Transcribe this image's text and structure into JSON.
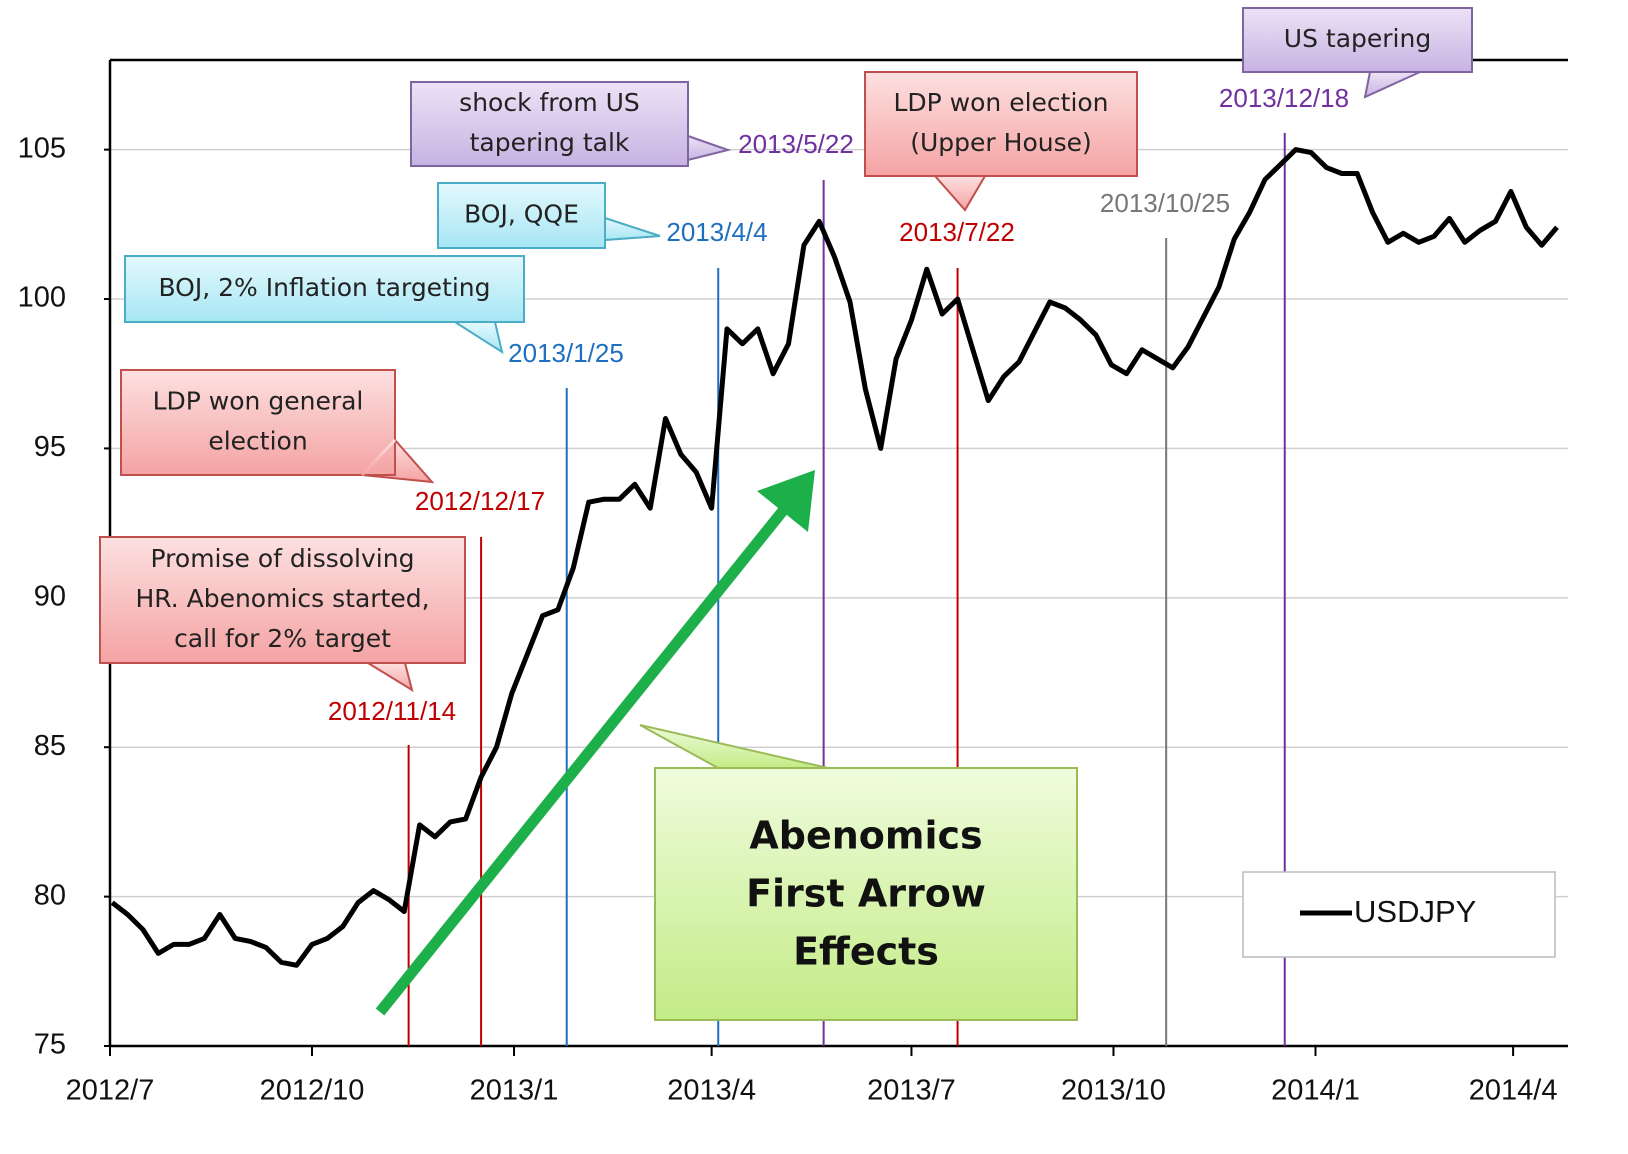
{
  "chart_data": {
    "type": "line",
    "x": [
      "2012/7/2",
      "2012/7/9",
      "2012/7/16",
      "2012/7/23",
      "2012/7/30",
      "2012/8/6",
      "2012/8/13",
      "2012/8/20",
      "2012/8/27",
      "2012/9/3",
      "2012/9/10",
      "2012/9/17",
      "2012/9/24",
      "2012/10/1",
      "2012/10/8",
      "2012/10/15",
      "2012/10/22",
      "2012/10/29",
      "2012/11/5",
      "2012/11/12",
      "2012/11/19",
      "2012/11/26",
      "2012/12/3",
      "2012/12/10",
      "2012/12/17",
      "2012/12/24",
      "2012/12/31",
      "2013/1/7",
      "2013/1/14",
      "2013/1/21",
      "2013/1/28",
      "2013/2/4",
      "2013/2/11",
      "2013/2/18",
      "2013/2/25",
      "2013/3/4",
      "2013/3/11",
      "2013/3/18",
      "2013/3/25",
      "2013/4/1",
      "2013/4/8",
      "2013/4/15",
      "2013/4/22",
      "2013/4/29",
      "2013/5/6",
      "2013/5/13",
      "2013/5/20",
      "2013/5/27",
      "2013/6/3",
      "2013/6/10",
      "2013/6/17",
      "2013/6/24",
      "2013/7/1",
      "2013/7/8",
      "2013/7/15",
      "2013/7/22",
      "2013/7/29",
      "2013/8/5",
      "2013/8/12",
      "2013/8/19",
      "2013/8/26",
      "2013/9/2",
      "2013/9/9",
      "2013/9/16",
      "2013/9/23",
      "2013/9/30",
      "2013/10/7",
      "2013/10/14",
      "2013/10/21",
      "2013/10/28",
      "2013/11/4",
      "2013/11/11",
      "2013/11/18",
      "2013/11/25",
      "2013/12/2",
      "2013/12/9",
      "2013/12/16",
      "2013/12/23",
      "2013/12/30",
      "2014/1/6",
      "2014/1/13",
      "2014/1/20",
      "2014/1/27",
      "2014/2/3",
      "2014/2/10",
      "2014/2/17",
      "2014/2/24",
      "2014/3/3",
      "2014/3/10",
      "2014/3/17",
      "2014/3/24",
      "2014/3/31",
      "2014/4/7",
      "2014/4/14",
      "2014/4/21"
    ],
    "series": [
      {
        "name": "USDJPY",
        "color": "#000000",
        "values": [
          79.8,
          79.4,
          78.9,
          78.1,
          78.4,
          78.4,
          78.6,
          79.4,
          78.6,
          78.5,
          78.3,
          77.8,
          77.7,
          78.4,
          78.6,
          79.0,
          79.8,
          80.2,
          79.9,
          79.5,
          82.4,
          82.0,
          82.5,
          82.6,
          84.0,
          85.0,
          86.8,
          88.1,
          89.4,
          89.6,
          91.0,
          93.2,
          93.3,
          93.3,
          93.8,
          93.0,
          96.0,
          94.8,
          94.2,
          93.0,
          99.0,
          98.5,
          99.0,
          97.5,
          98.5,
          101.8,
          102.6,
          101.4,
          99.9,
          97.0,
          95.0,
          98.0,
          99.3,
          101.0,
          99.5,
          100.0,
          98.3,
          96.6,
          97.4,
          97.9,
          98.9,
          99.9,
          99.7,
          99.3,
          98.8,
          97.8,
          97.5,
          98.3,
          98.0,
          97.7,
          98.4,
          99.4,
          100.4,
          102.0,
          102.9,
          104.0,
          104.5,
          105.0,
          104.9,
          104.4,
          104.2,
          104.2,
          102.9,
          101.9,
          102.2,
          101.9,
          102.1,
          102.7,
          101.9,
          102.3,
          102.6,
          103.6,
          102.4,
          101.8,
          102.4
        ]
      }
    ],
    "xlim": [
      "2012/7/1",
      "2014/4/26"
    ],
    "ylim": [
      75,
      108
    ],
    "xticks": [
      "2012/7",
      "2012/10",
      "2013/1",
      "2013/4",
      "2013/7",
      "2013/10",
      "2014/1",
      "2014/4"
    ],
    "yticks": [
      75,
      80,
      85,
      90,
      95,
      100,
      105
    ],
    "grid": true,
    "legend": "lower right",
    "events": [
      {
        "date": "2012/11/14",
        "color": "#c00000",
        "note": [
          "Promise of dissolving",
          "HR. Abenomics started,",
          "call for 2% target"
        ]
      },
      {
        "date": "2012/12/17",
        "color": "#c00000",
        "note": [
          "LDP won general",
          "election"
        ]
      },
      {
        "date": "2013/1/25",
        "color": "#1f6fc0",
        "note": [
          "BOJ, 2% Inflation targeting"
        ]
      },
      {
        "date": "2013/4/4",
        "color": "#1f6fc0",
        "note": [
          "BOJ, QQE"
        ]
      },
      {
        "date": "2013/5/22",
        "color": "#7030a0",
        "note": [
          "shock from US",
          "tapering talk"
        ]
      },
      {
        "date": "2013/7/22",
        "color": "#c00000",
        "note": [
          "LDP won election",
          "(Upper House)"
        ]
      },
      {
        "date": "2013/10/25",
        "color": "#777777"
      },
      {
        "date": "2013/12/18",
        "color": "#7030a0",
        "note": [
          "US tapering"
        ]
      }
    ],
    "annotation": [
      "Abenomics",
      "First Arrow",
      "Effects"
    ]
  }
}
